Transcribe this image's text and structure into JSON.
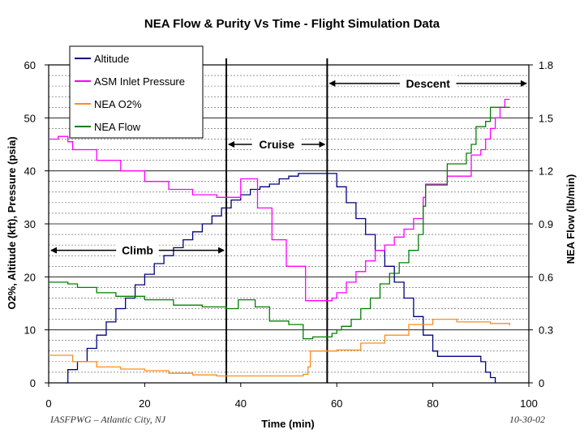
{
  "chart_data": {
    "type": "line",
    "title": "NEA Flow & Purity Vs Time - Flight Simulation Data",
    "xlabel": "Time (min)",
    "ylabel": "O2%, Altitude (kft), Pressure (psia)",
    "y2label": "NEA Flow (lb/min)",
    "xlim": [
      0,
      100
    ],
    "ylim": [
      0,
      60
    ],
    "y2lim": [
      0,
      1.8
    ],
    "grid": "dashed horizontal",
    "x_ticks": [
      "0",
      "20",
      "40",
      "60",
      "80",
      "100"
    ],
    "y_ticks": [
      "0",
      "10",
      "20",
      "30",
      "40",
      "50",
      "60"
    ],
    "y2_ticks": [
      "0",
      "0.3",
      "0.6",
      "0.9",
      "1.2",
      "1.5",
      "1.8"
    ],
    "legend": "top-left",
    "series": [
      {
        "name": "Altitude",
        "color": "#000080",
        "axis": "left",
        "points": [
          [
            3.5,
            0
          ],
          [
            4,
            2.5
          ],
          [
            6,
            4
          ],
          [
            8,
            6.5
          ],
          [
            10,
            9
          ],
          [
            12,
            11.5
          ],
          [
            14,
            14
          ],
          [
            16,
            16
          ],
          [
            18,
            18.5
          ],
          [
            20,
            20.5
          ],
          [
            22,
            22.5
          ],
          [
            24,
            24
          ],
          [
            26,
            25.5
          ],
          [
            28,
            27
          ],
          [
            30,
            28.5
          ],
          [
            32,
            30
          ],
          [
            34,
            31.5
          ],
          [
            36,
            33
          ],
          [
            38,
            34.5
          ],
          [
            40,
            35.5
          ],
          [
            42,
            36.5
          ],
          [
            44,
            37
          ],
          [
            46,
            37.5
          ],
          [
            48,
            38.5
          ],
          [
            50,
            39
          ],
          [
            52,
            39.5
          ],
          [
            55,
            39.5
          ],
          [
            58,
            39.5
          ],
          [
            60,
            37
          ],
          [
            62,
            34
          ],
          [
            64,
            31
          ],
          [
            66,
            28
          ],
          [
            68,
            25
          ],
          [
            70,
            22
          ],
          [
            72,
            19
          ],
          [
            74,
            16
          ],
          [
            76,
            12.5
          ],
          [
            78,
            9
          ],
          [
            80,
            6
          ],
          [
            81,
            5
          ],
          [
            84,
            5
          ],
          [
            88,
            5
          ],
          [
            90,
            4
          ],
          [
            91,
            2
          ],
          [
            92,
            1
          ],
          [
            93,
            0
          ]
        ]
      },
      {
        "name": "ASM Inlet Pressure",
        "color": "#ff00ff",
        "axis": "left",
        "points": [
          [
            0,
            46
          ],
          [
            2,
            46.5
          ],
          [
            4,
            45.5
          ],
          [
            5,
            44
          ],
          [
            10,
            42
          ],
          [
            15,
            40
          ],
          [
            20,
            38
          ],
          [
            25,
            36.5
          ],
          [
            30,
            35.5
          ],
          [
            35,
            35
          ],
          [
            37,
            35
          ],
          [
            39,
            35
          ],
          [
            40,
            38.5
          ],
          [
            42,
            38.5
          ],
          [
            43,
            38.5
          ],
          [
            43.5,
            33
          ],
          [
            46,
            33
          ],
          [
            46.5,
            27
          ],
          [
            49,
            27
          ],
          [
            49.5,
            22
          ],
          [
            53,
            22
          ],
          [
            53.5,
            15.5
          ],
          [
            58,
            15.5
          ],
          [
            59,
            16
          ],
          [
            60,
            17
          ],
          [
            62,
            19
          ],
          [
            64,
            21
          ],
          [
            66,
            23
          ],
          [
            68,
            25
          ],
          [
            70,
            26
          ],
          [
            72,
            27.5
          ],
          [
            74,
            29
          ],
          [
            76,
            31
          ],
          [
            78,
            35
          ],
          [
            78.5,
            37.5
          ],
          [
            80,
            37.5
          ],
          [
            82,
            37.5
          ],
          [
            83,
            39
          ],
          [
            85,
            39
          ],
          [
            87,
            39
          ],
          [
            88,
            43
          ],
          [
            90,
            44
          ],
          [
            91,
            46
          ],
          [
            92,
            48
          ],
          [
            93,
            50
          ],
          [
            94,
            52
          ],
          [
            95,
            53.5
          ],
          [
            96,
            53.5
          ]
        ]
      },
      {
        "name": "NEA O2%",
        "color": "#ff8c1a",
        "axis": "left",
        "points": [
          [
            0,
            5.2
          ],
          [
            4,
            5.2
          ],
          [
            5,
            4
          ],
          [
            10,
            3
          ],
          [
            15,
            2.6
          ],
          [
            20,
            2.3
          ],
          [
            25,
            1.8
          ],
          [
            30,
            1.5
          ],
          [
            35,
            1.3
          ],
          [
            40,
            1.3
          ],
          [
            45,
            1.3
          ],
          [
            50,
            1.3
          ],
          [
            53,
            1.6
          ],
          [
            54,
            3
          ],
          [
            54.5,
            6
          ],
          [
            57,
            6
          ],
          [
            60,
            6.2
          ],
          [
            65,
            7.5
          ],
          [
            70,
            9
          ],
          [
            75,
            11
          ],
          [
            80,
            12
          ],
          [
            82,
            12
          ],
          [
            85,
            11.5
          ],
          [
            88,
            11.5
          ],
          [
            92,
            11.2
          ],
          [
            96,
            10.8
          ]
        ]
      },
      {
        "name": "NEA Flow",
        "color": "#008000",
        "axis": "right",
        "points": [
          [
            0,
            0.57
          ],
          [
            2,
            0.57
          ],
          [
            4,
            0.56
          ],
          [
            6,
            0.54
          ],
          [
            10,
            0.51
          ],
          [
            14,
            0.49
          ],
          [
            20,
            0.47
          ],
          [
            26,
            0.44
          ],
          [
            32,
            0.43
          ],
          [
            37,
            0.42
          ],
          [
            39,
            0.42
          ],
          [
            39.5,
            0.47
          ],
          [
            42,
            0.47
          ],
          [
            43,
            0.43
          ],
          [
            45,
            0.43
          ],
          [
            46,
            0.35
          ],
          [
            49,
            0.35
          ],
          [
            50,
            0.33
          ],
          [
            52.5,
            0.33
          ],
          [
            53,
            0.25
          ],
          [
            55,
            0.26
          ],
          [
            58,
            0.26
          ],
          [
            59,
            0.28
          ],
          [
            60,
            0.3
          ],
          [
            61,
            0.32
          ],
          [
            63,
            0.36
          ],
          [
            65,
            0.42
          ],
          [
            67,
            0.48
          ],
          [
            69,
            0.56
          ],
          [
            71,
            0.62
          ],
          [
            73,
            0.68
          ],
          [
            75,
            0.75
          ],
          [
            77,
            0.84
          ],
          [
            78,
            1.0
          ],
          [
            78.5,
            1.12
          ],
          [
            81,
            1.12
          ],
          [
            82,
            1.12
          ],
          [
            83,
            1.24
          ],
          [
            86,
            1.24
          ],
          [
            87,
            1.3
          ],
          [
            88,
            1.35
          ],
          [
            89,
            1.45
          ],
          [
            91,
            1.48
          ],
          [
            92,
            1.56
          ],
          [
            95,
            1.56
          ],
          [
            96,
            1.56
          ]
        ]
      }
    ],
    "annotations": [
      {
        "label": "Climb",
        "x_from": 0,
        "x_to": 37,
        "y": 25
      },
      {
        "label": "Cruise",
        "x_from": 37,
        "x_to": 58,
        "y": 45
      },
      {
        "label": "Descent",
        "x_from": 58,
        "x_to": 100,
        "y": 56.5
      }
    ],
    "phase_lines_x": [
      37,
      58
    ]
  },
  "footer": {
    "left": "IASFPWG – Atlantic City, NJ",
    "right": "10-30-02"
  }
}
